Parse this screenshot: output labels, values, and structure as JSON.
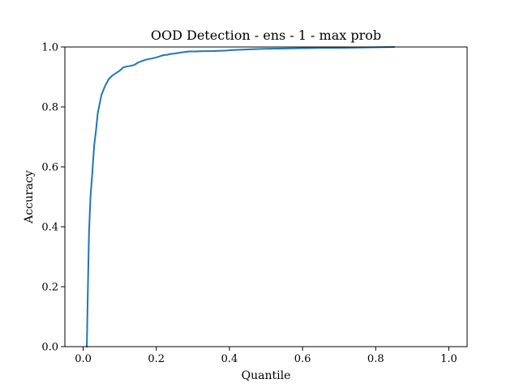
{
  "chart_data": {
    "type": "line",
    "title": "OOD Detection - ens - 1 - max prob",
    "xlabel": "Quantile",
    "ylabel": "Accuracy",
    "xlim": [
      -0.05,
      1.05
    ],
    "ylim": [
      0.0,
      1.0
    ],
    "xticks": [
      0.0,
      0.2,
      0.4,
      0.6,
      0.8,
      1.0
    ],
    "xtick_labels": [
      "0.0",
      "0.2",
      "0.4",
      "0.6",
      "0.8",
      "1.0"
    ],
    "yticks": [
      0.0,
      0.2,
      0.4,
      0.6,
      0.8,
      1.0
    ],
    "ytick_labels": [
      "0.0",
      "0.2",
      "0.4",
      "0.6",
      "0.8",
      "1.0"
    ],
    "grid": false,
    "legend": false,
    "colors": {
      "series": "#1f77b4",
      "axes": "#000000",
      "background": "#ffffff"
    },
    "series": [
      {
        "x": [
          0.01,
          0.013,
          0.016,
          0.02,
          0.025,
          0.03,
          0.035,
          0.04,
          0.05,
          0.06,
          0.07,
          0.08,
          0.09,
          0.1,
          0.11,
          0.12,
          0.13,
          0.14,
          0.15,
          0.16,
          0.17,
          0.18,
          0.19,
          0.2,
          0.21,
          0.22,
          0.23,
          0.24,
          0.25,
          0.27,
          0.29,
          0.31,
          0.33,
          0.35,
          0.37,
          0.39,
          0.41,
          0.43,
          0.45,
          0.47,
          0.5,
          0.55,
          0.6,
          0.65,
          0.7,
          0.75,
          0.8,
          0.85
        ],
        "y": [
          0.0,
          0.2,
          0.38,
          0.5,
          0.58,
          0.67,
          0.72,
          0.78,
          0.84,
          0.87,
          0.893,
          0.905,
          0.913,
          0.921,
          0.932,
          0.935,
          0.937,
          0.94,
          0.948,
          0.953,
          0.957,
          0.96,
          0.962,
          0.965,
          0.969,
          0.973,
          0.974,
          0.977,
          0.978,
          0.982,
          0.985,
          0.985,
          0.986,
          0.986,
          0.987,
          0.988,
          0.99,
          0.991,
          0.992,
          0.993,
          0.994,
          0.995,
          0.996,
          0.997,
          0.997,
          0.998,
          0.999,
          1.0
        ]
      }
    ]
  }
}
